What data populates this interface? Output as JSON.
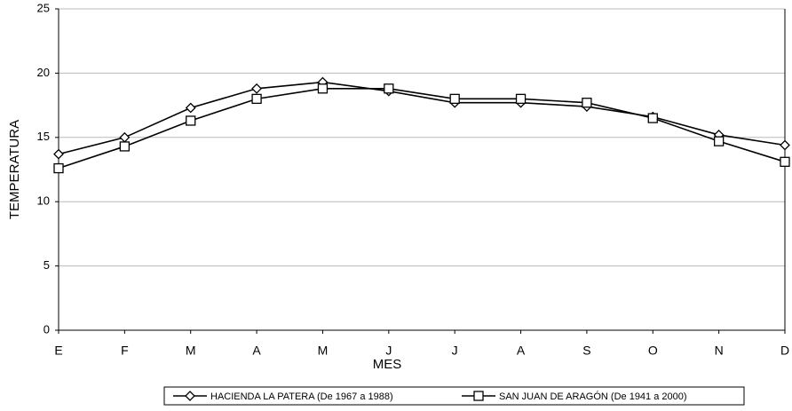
{
  "chart_data": {
    "type": "line",
    "xlabel": "MES",
    "ylabel": "TEMPERATURA",
    "categories": [
      "E",
      "F",
      "M",
      "A",
      "M",
      "J",
      "J",
      "A",
      "S",
      "O",
      "N",
      "D"
    ],
    "series": [
      {
        "name": "HACIENDA LA PATERA  (De 1967 a 1988)",
        "color": "#000000",
        "marker": "diamond",
        "values": [
          13.7,
          15.0,
          17.3,
          18.8,
          19.3,
          18.6,
          17.7,
          17.7,
          17.4,
          16.6,
          15.2,
          14.4
        ]
      },
      {
        "name": "SAN JUAN DE ARAGÓN  (De 1941 a 2000)",
        "color": "#000000",
        "marker": "square",
        "values": [
          12.6,
          14.3,
          16.3,
          18.0,
          18.8,
          18.8,
          18.0,
          18.0,
          17.7,
          16.5,
          14.7,
          13.1
        ]
      }
    ],
    "ylim": [
      0,
      25
    ],
    "yticks": [
      0,
      5,
      10,
      15,
      20,
      25
    ],
    "grid": true,
    "legend": "bottom"
  }
}
